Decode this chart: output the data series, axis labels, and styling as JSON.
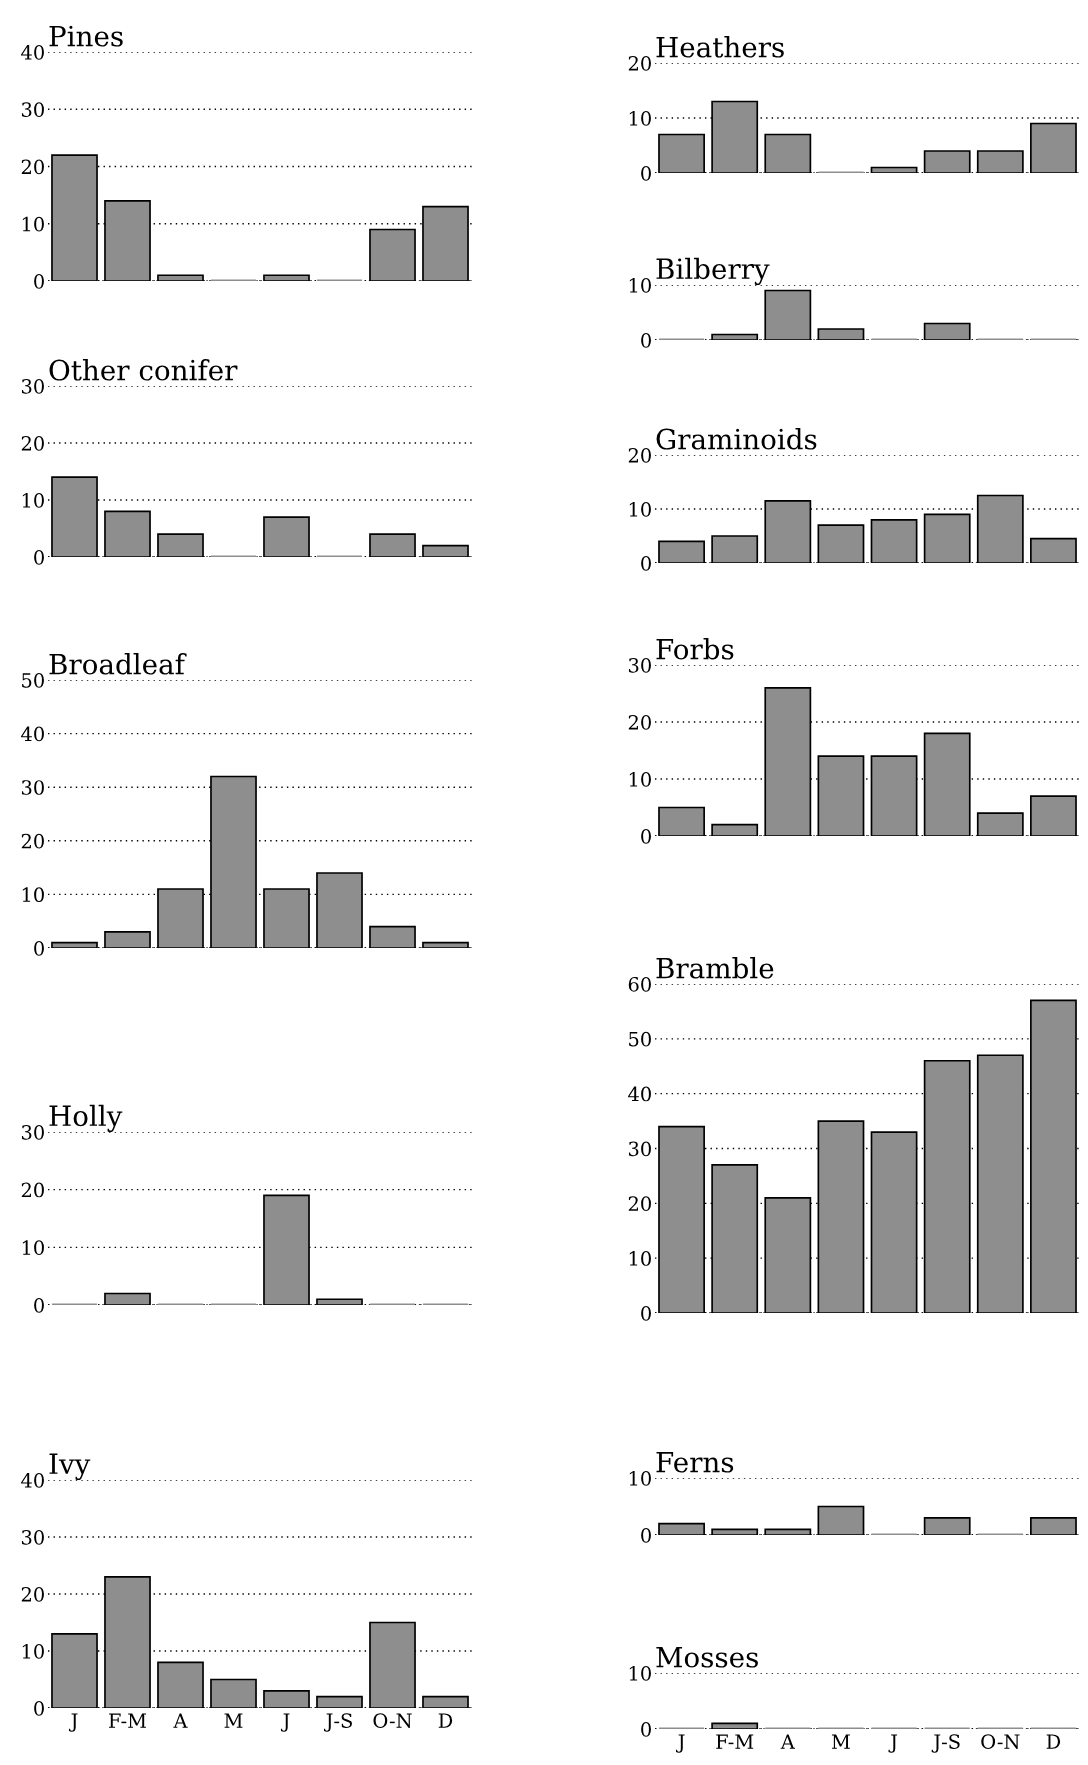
{
  "chart_data": [
    {
      "type": "bar",
      "title": "Pines",
      "categories": [
        null,
        null,
        null,
        null,
        null,
        null,
        null,
        null
      ],
      "values": [
        22,
        14,
        1,
        0,
        1,
        0,
        9,
        13
      ],
      "color": "#8e8e8e",
      "ylim": [
        0,
        40
      ],
      "yticks": [
        0,
        10,
        20,
        30,
        40
      ],
      "grid": "y"
    },
    {
      "type": "bar",
      "title": "Other conifer",
      "categories": [
        null,
        null,
        null,
        null,
        null,
        null,
        null,
        null
      ],
      "values": [
        14,
        8,
        4,
        0,
        7,
        0,
        4,
        2
      ],
      "color": "#8e8e8e",
      "ylim": [
        0,
        30
      ],
      "yticks": [
        0,
        10,
        20,
        30
      ],
      "grid": "y"
    },
    {
      "type": "bar",
      "title": "Broadleaf",
      "categories": [
        null,
        null,
        null,
        null,
        null,
        null,
        null,
        null
      ],
      "values": [
        1,
        3,
        11,
        32,
        11,
        14,
        4,
        1
      ],
      "color": "#8e8e8e",
      "ylim": [
        0,
        50
      ],
      "yticks": [
        0,
        10,
        20,
        30,
        40,
        50
      ],
      "grid": "y"
    },
    {
      "type": "bar",
      "title": "Holly",
      "categories": [
        null,
        null,
        null,
        null,
        null,
        null,
        null,
        null
      ],
      "values": [
        0,
        2,
        0,
        0,
        19,
        1,
        0,
        0
      ],
      "color": "#8e8e8e",
      "ylim": [
        0,
        30
      ],
      "yticks": [
        0,
        10,
        20,
        30
      ],
      "grid": "y"
    },
    {
      "type": "bar",
      "title": "Ivy",
      "categories": [
        "J",
        "F-M",
        "A",
        "M",
        "J",
        "J-S",
        "O-N",
        "D"
      ],
      "values": [
        13,
        23,
        8,
        5,
        3,
        2,
        15,
        2
      ],
      "color": "#8e8e8e",
      "ylim": [
        0,
        40
      ],
      "yticks": [
        0,
        10,
        20,
        30,
        40
      ],
      "grid": "y"
    },
    {
      "type": "bar",
      "title": "Heathers",
      "categories": [
        null,
        null,
        null,
        null,
        null,
        null,
        null,
        null
      ],
      "values": [
        7,
        13,
        7,
        0,
        1,
        4,
        4,
        9
      ],
      "color": "#8e8e8e",
      "ylim": [
        0,
        20
      ],
      "yticks": [
        0,
        10,
        20
      ],
      "grid": "y"
    },
    {
      "type": "bar",
      "title": "Bilberry",
      "categories": [
        null,
        null,
        null,
        null,
        null,
        null,
        null,
        null
      ],
      "values": [
        0,
        1,
        9,
        2,
        0,
        3,
        0,
        0
      ],
      "color": "#8e8e8e",
      "ylim": [
        0,
        10
      ],
      "yticks": [
        0,
        10
      ],
      "grid": "y"
    },
    {
      "type": "bar",
      "title": "Graminoids",
      "categories": [
        null,
        null,
        null,
        null,
        null,
        null,
        null,
        null
      ],
      "values": [
        4,
        5,
        11.5,
        7,
        8,
        9,
        12.5,
        4.5
      ],
      "color": "#8e8e8e",
      "ylim": [
        0,
        20
      ],
      "yticks": [
        0,
        10,
        20
      ],
      "grid": "y"
    },
    {
      "type": "bar",
      "title": "Forbs",
      "categories": [
        null,
        null,
        null,
        null,
        null,
        null,
        null,
        null
      ],
      "values": [
        5,
        2,
        26,
        14,
        14,
        18,
        4,
        7
      ],
      "color": "#8e8e8e",
      "ylim": [
        0,
        30
      ],
      "yticks": [
        0,
        10,
        20,
        30
      ],
      "grid": "y"
    },
    {
      "type": "bar",
      "title": "Bramble",
      "categories": [
        null,
        null,
        null,
        null,
        null,
        null,
        null,
        null
      ],
      "values": [
        34,
        27,
        21,
        35,
        33,
        46,
        47,
        57
      ],
      "color": "#8e8e8e",
      "ylim": [
        0,
        60
      ],
      "yticks": [
        0,
        10,
        20,
        30,
        40,
        50,
        60
      ],
      "grid": "y"
    },
    {
      "type": "bar",
      "title": "Ferns",
      "categories": [
        null,
        null,
        null,
        null,
        null,
        null,
        null,
        null
      ],
      "values": [
        2,
        1,
        1,
        5,
        0,
        3,
        0,
        3
      ],
      "color": "#8e8e8e",
      "ylim": [
        0,
        10
      ],
      "yticks": [
        0,
        10
      ],
      "grid": "y"
    },
    {
      "type": "bar",
      "title": "Mosses",
      "categories": [
        "J",
        "F-M",
        "A",
        "M",
        "J",
        "J-S",
        "O-N",
        "D"
      ],
      "values": [
        0,
        1,
        0,
        0,
        0,
        0,
        0,
        0
      ],
      "color": "#8e8e8e",
      "ylim": [
        0,
        10
      ],
      "yticks": [
        0,
        10
      ],
      "grid": "y"
    }
  ]
}
